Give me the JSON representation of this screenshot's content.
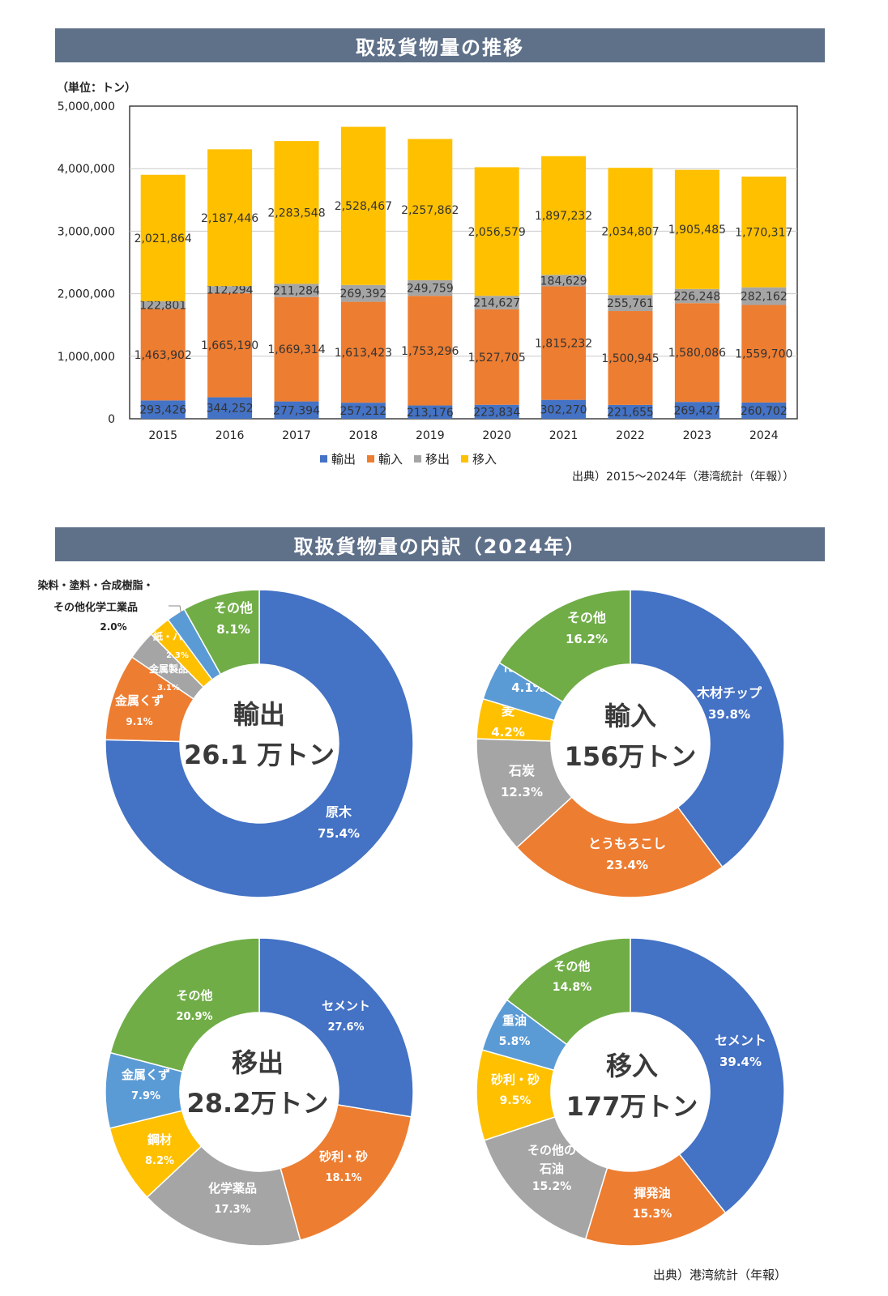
{
  "titles": {
    "trend": "取扱貨物量の推移",
    "breakdown": "取扱貨物量の内訳（2024年）"
  },
  "trend": {
    "unit_label": "（単位：トン）",
    "source": "出典）2015～2024年（港湾統計（年報））"
  },
  "breakdown_source": "出典）港湾統計（年報）",
  "chart_data": [
    {
      "type": "bar",
      "stacked": true,
      "title": "取扱貨物量の推移",
      "ylabel": "（単位：トン）",
      "ylim": [
        0,
        5000000
      ],
      "yticks": [
        "0",
        "1,000,000",
        "2,000,000",
        "3,000,000",
        "4,000,000",
        "5,000,000"
      ],
      "categories": [
        "2015",
        "2016",
        "2017",
        "2018",
        "2019",
        "2020",
        "2021",
        "2022",
        "2023",
        "2024"
      ],
      "series": [
        {
          "name": "輸出",
          "color": "#4472c4",
          "values": [
            293426,
            344252,
            277394,
            257212,
            213176,
            223834,
            302270,
            221655,
            269427,
            260702
          ],
          "labels": [
            "293,426",
            "344,252",
            "277,394",
            "257,212",
            "213,176",
            "223,834",
            "302,270",
            "221,655",
            "269,427",
            "260,702"
          ]
        },
        {
          "name": "輸入",
          "color": "#ed7d31",
          "values": [
            1463902,
            1665190,
            1669314,
            1613423,
            1753296,
            1527705,
            1815232,
            1500945,
            1580086,
            1559700
          ],
          "labels": [
            "1,463,902",
            "1,665,190",
            "1,669,314",
            "1,613,423",
            "1,753,296",
            "1,527,705",
            "1,815,232",
            "1,500,945",
            "1,580,086",
            "1,559,700"
          ]
        },
        {
          "name": "移出",
          "color": "#a5a5a5",
          "values": [
            122801,
            112294,
            211284,
            269392,
            249759,
            214627,
            184629,
            255761,
            226248,
            282162
          ],
          "labels": [
            "122,801",
            "112,294",
            "211,284",
            "269,392",
            "249,759",
            "214,627",
            "184,629",
            "255,761",
            "226,248",
            "282,162"
          ]
        },
        {
          "name": "移入",
          "color": "#ffc000",
          "values": [
            2021864,
            2187446,
            2283548,
            2528467,
            2257862,
            2056579,
            1897232,
            2034807,
            1905485,
            1770317
          ],
          "labels": [
            "2,021,864",
            "2,187,446",
            "2,283,548",
            "2,528,467",
            "2,257,862",
            "2,056,579",
            "1,897,232",
            "2,034,807",
            "1,905,485",
            "1,770,317"
          ]
        }
      ]
    },
    {
      "type": "pie",
      "donut": true,
      "title": "輸出",
      "total": "26.1",
      "total_unit": "万トン",
      "slices": [
        {
          "label": "原木",
          "value": 75.4,
          "pct": "75.4%",
          "color": "#4472c4"
        },
        {
          "label": "金属くず",
          "value": 9.1,
          "pct": "9.1%",
          "color": "#ed7d31"
        },
        {
          "label": "金属製品",
          "value": 3.1,
          "pct": "3.1%",
          "color": "#a5a5a5"
        },
        {
          "label": "紙・パルプ",
          "value": 2.3,
          "pct": "2.3%",
          "color": "#ffc000"
        },
        {
          "label": "染料・塗料・合成樹脂・その他化学工業品",
          "label_line1": "染料・塗料・合成樹脂・",
          "label_line2": "その他化学工業品",
          "value": 2.0,
          "pct": "2.0%",
          "color": "#5b9bd5"
        },
        {
          "label": "その他",
          "value": 8.1,
          "pct": "8.1%",
          "color": "#70ad47"
        }
      ]
    },
    {
      "type": "pie",
      "donut": true,
      "title": "輸入",
      "total": "156",
      "total_unit": "万トン",
      "slices": [
        {
          "label": "木材チップ",
          "value": 39.8,
          "pct": "39.8%",
          "color": "#4472c4"
        },
        {
          "label": "とうもろこし",
          "value": 23.4,
          "pct": "23.4%",
          "color": "#ed7d31"
        },
        {
          "label": "石炭",
          "value": 12.3,
          "pct": "12.3%",
          "color": "#a5a5a5"
        },
        {
          "label": "麦",
          "value": 4.2,
          "pct": "4.2%",
          "color": "#ffc000"
        },
        {
          "label": "化学薬品",
          "value": 4.1,
          "pct": "4.1%",
          "color": "#5b9bd5"
        },
        {
          "label": "その他",
          "value": 16.2,
          "pct": "16.2%",
          "color": "#70ad47"
        }
      ]
    },
    {
      "type": "pie",
      "donut": true,
      "title": "移出",
      "total": "28.2",
      "total_unit": "万トン",
      "slices": [
        {
          "label": "セメント",
          "value": 27.6,
          "pct": "27.6%",
          "color": "#4472c4"
        },
        {
          "label": "砂利・砂",
          "value": 18.1,
          "pct": "18.1%",
          "color": "#ed7d31"
        },
        {
          "label": "化学薬品",
          "value": 17.3,
          "pct": "17.3%",
          "color": "#a5a5a5"
        },
        {
          "label": "鋼材",
          "value": 8.2,
          "pct": "8.2%",
          "color": "#ffc000"
        },
        {
          "label": "金属くず",
          "value": 7.9,
          "pct": "7.9%",
          "color": "#5b9bd5"
        },
        {
          "label": "その他",
          "value": 20.9,
          "pct": "20.9%",
          "color": "#70ad47"
        }
      ]
    },
    {
      "type": "pie",
      "donut": true,
      "title": "移入",
      "total": "177",
      "total_unit": "万トン",
      "slices": [
        {
          "label": "セメント",
          "value": 39.4,
          "pct": "39.4%",
          "color": "#4472c4"
        },
        {
          "label": "揮発油",
          "value": 15.3,
          "pct": "15.3%",
          "color": "#ed7d31"
        },
        {
          "label": "その他の石油",
          "label_line1": "その他の",
          "label_line2": "石油",
          "value": 15.2,
          "pct": "15.2%",
          "color": "#a5a5a5"
        },
        {
          "label": "砂利・砂",
          "value": 9.5,
          "pct": "9.5%",
          "color": "#ffc000"
        },
        {
          "label": "重油",
          "value": 5.8,
          "pct": "5.8%",
          "color": "#5b9bd5"
        },
        {
          "label": "その他",
          "value": 14.8,
          "pct": "14.8%",
          "color": "#70ad47"
        }
      ]
    }
  ]
}
